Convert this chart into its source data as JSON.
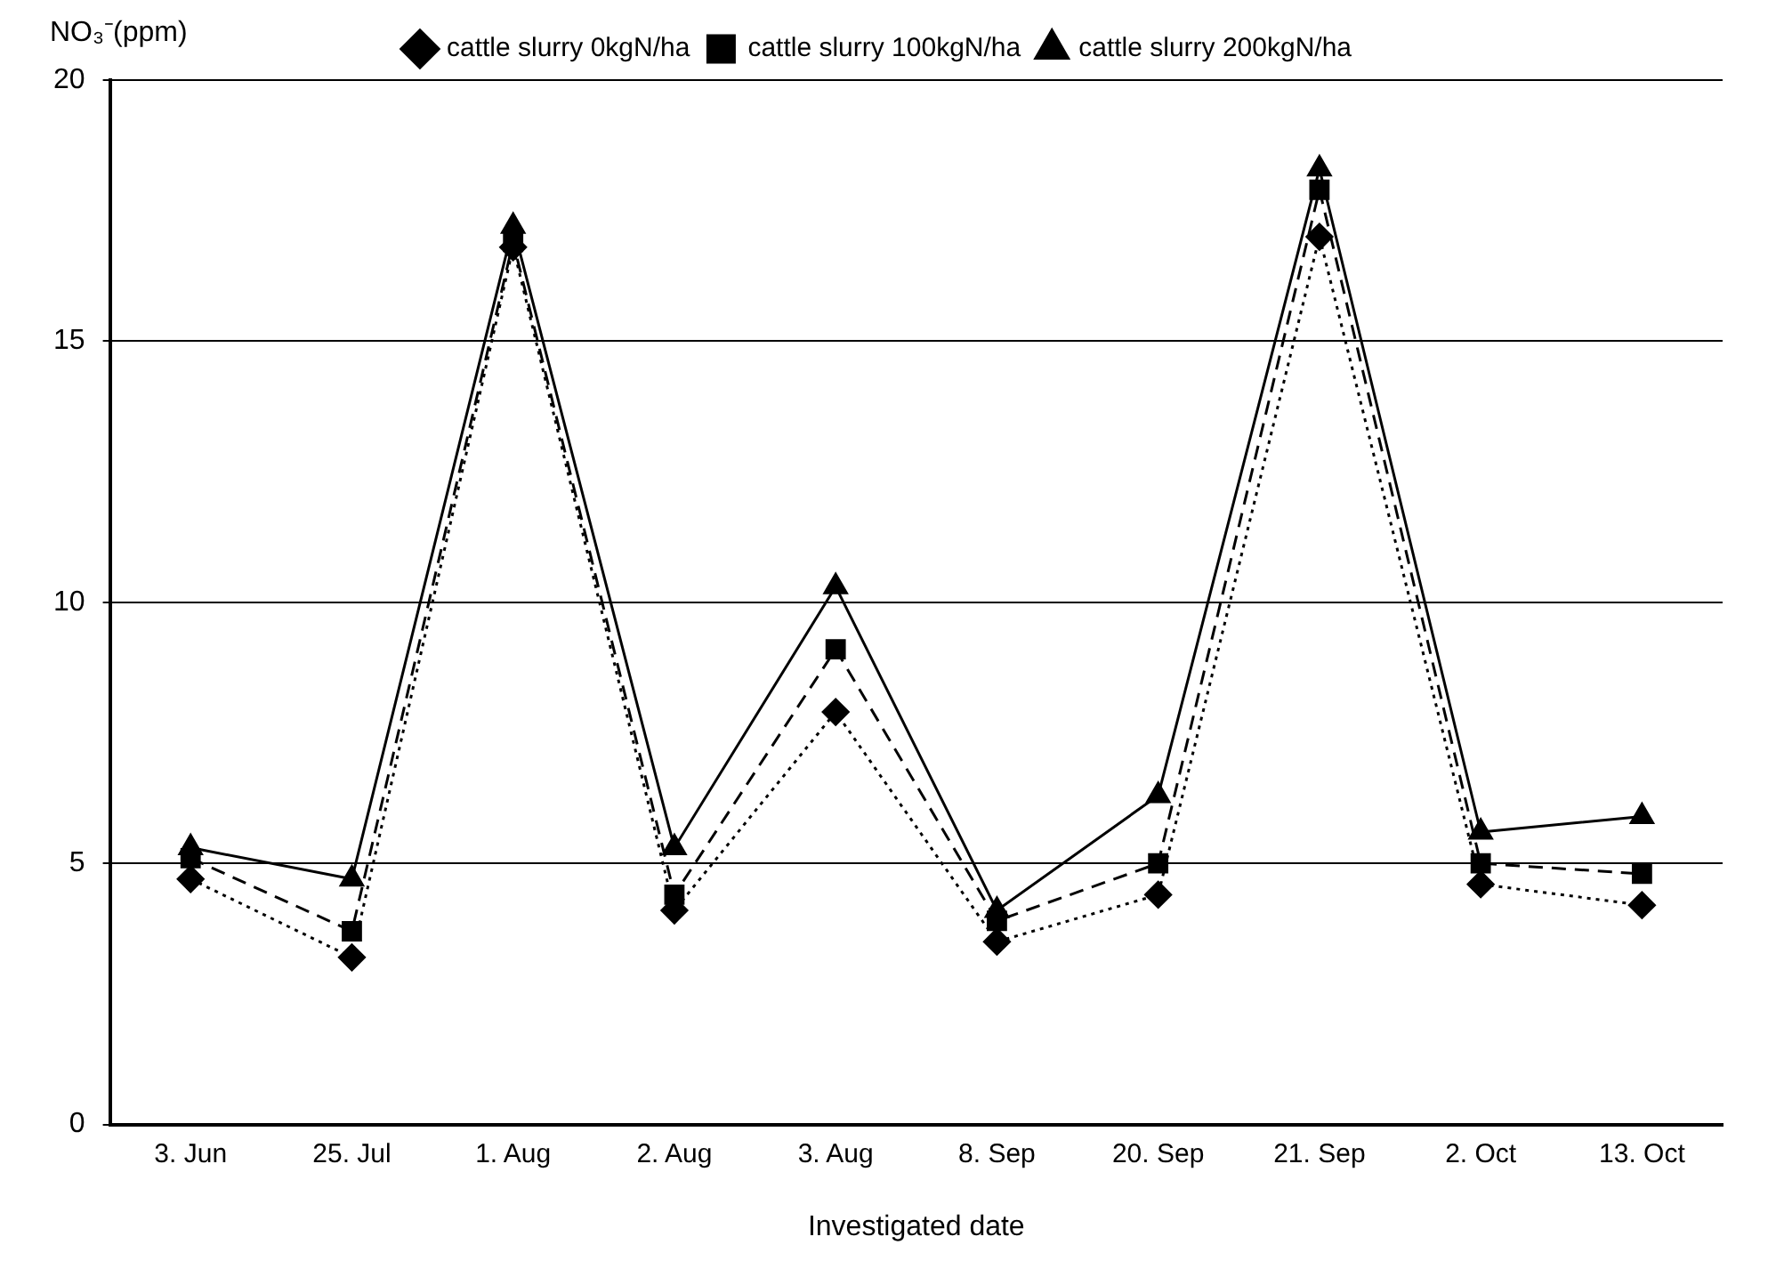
{
  "chart_data": {
    "type": "line",
    "xlabel": "Investigated date",
    "ylabel": "NO₃⁻(ppm)",
    "categories": [
      "3. Jun",
      "25. Jul",
      "1. Aug",
      "2. Aug",
      "3. Aug",
      "8. Sep",
      "20. Sep",
      "21. Sep",
      "2. Oct",
      "13. Oct"
    ],
    "series": [
      {
        "name": "cattle slurry 0kgN/ha",
        "color": "#000000",
        "marker": "diamond",
        "line_style": "dotted",
        "values": [
          4.7,
          3.2,
          16.8,
          4.1,
          7.9,
          3.5,
          4.4,
          17.0,
          4.6,
          4.2
        ]
      },
      {
        "name": "cattle slurry 100kgN/ha",
        "color": "#000000",
        "marker": "square",
        "line_style": "dashed",
        "values": [
          5.1,
          3.7,
          16.9,
          4.4,
          9.1,
          3.9,
          5.0,
          17.9,
          5.0,
          4.8
        ]
      },
      {
        "name": "cattle slurry 200kgN/ha",
        "color": "#000000",
        "marker": "triangle",
        "line_style": "solid",
        "values": [
          5.3,
          4.7,
          17.2,
          5.3,
          10.3,
          4.1,
          6.3,
          18.3,
          5.6,
          5.9
        ]
      }
    ],
    "ylim": [
      0,
      20
    ],
    "yticks": [
      0,
      5,
      10,
      15,
      20
    ],
    "grid": "y",
    "legend": "top"
  }
}
